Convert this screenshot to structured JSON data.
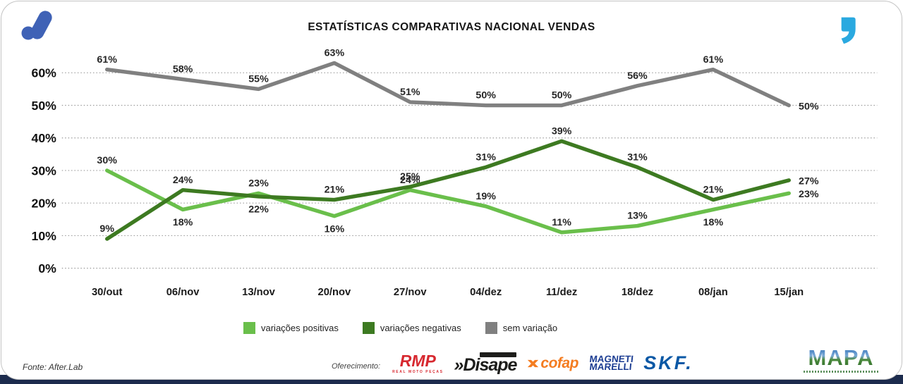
{
  "header": {
    "title": "ESTATÍSTICAS COMPARATIVAS NACIONAL VENDAS"
  },
  "icons": {
    "top_left": "a-mark-logo",
    "top_right": "quote-icon",
    "colors": {
      "a_mark_blue": "#3f62b6",
      "quote_blue": "#2aa9e0"
    }
  },
  "chart_data": {
    "type": "line",
    "title": "ESTATÍSTICAS COMPARATIVAS NACIONAL VENDAS",
    "categories": [
      "30/out",
      "06/nov",
      "13/nov",
      "20/nov",
      "27/nov",
      "04/dez",
      "11/dez",
      "18/dez",
      "08/jan",
      "15/jan"
    ],
    "series": [
      {
        "name": "variações positivas",
        "color": "#6abf4b",
        "values": [
          30,
          18,
          23,
          16,
          24,
          19,
          11,
          13,
          18,
          23
        ],
        "label_pos": [
          "above",
          "below",
          "above",
          "below",
          "above",
          "above",
          "above",
          "above",
          "below",
          "right"
        ]
      },
      {
        "name": "variações negativas",
        "color": "#3d7a21",
        "values": [
          9,
          24,
          22,
          21,
          25,
          31,
          39,
          31,
          21,
          27
        ],
        "label_pos": [
          "above",
          "above",
          "below",
          "above",
          "above",
          "above",
          "above",
          "above",
          "above",
          "right"
        ]
      },
      {
        "name": "sem variação",
        "color": "#808080",
        "values": [
          61,
          58,
          55,
          63,
          51,
          50,
          50,
          56,
          61,
          50
        ],
        "label_pos": [
          "above",
          "above",
          "above",
          "above",
          "above",
          "above",
          "above",
          "above",
          "above",
          "right"
        ]
      }
    ],
    "yticks": [
      0,
      10,
      20,
      30,
      40,
      50,
      60
    ],
    "ytick_suffix": "%",
    "ylim": [
      0,
      65
    ],
    "grid": "horizontal dotted",
    "legend_position": "bottom"
  },
  "footer": {
    "source": "Fonte: After.Lab",
    "sponsor_label": "Oferecimento:",
    "sponsors": {
      "rmp": {
        "text": "RMP",
        "sub": "REAL MOTO PEÇAS"
      },
      "disape": {
        "prefix": "»",
        "text": "Disape"
      },
      "cofap": {
        "text": "cofap"
      },
      "magneti": {
        "line1": "MAGNETI",
        "line2": "MARELLI"
      },
      "skf": {
        "text": "SKF."
      }
    },
    "mapa": {
      "text": "MAPA"
    }
  }
}
